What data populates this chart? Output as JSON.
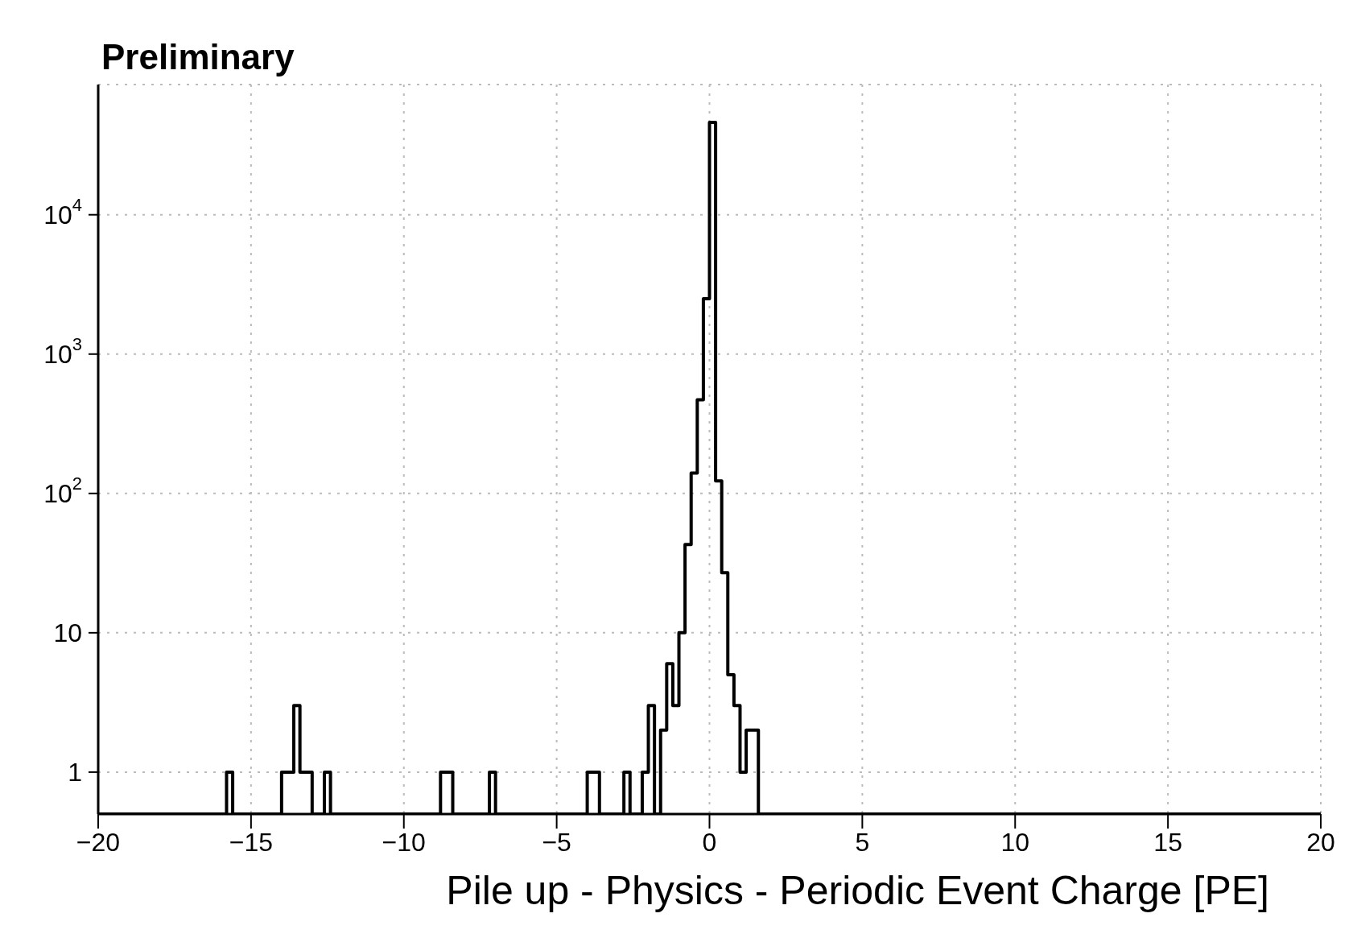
{
  "chart_data": {
    "type": "histogram",
    "title": "Preliminary",
    "xlabel": "Pile up - Physics - Periodic Event Charge [PE]",
    "color": "#000000",
    "log": "y",
    "grid": true,
    "bins": [
      -20,
      -19.8,
      -19.6,
      -19.4,
      -19.2,
      -19,
      -18.8,
      -18.6,
      -18.4,
      -18.2,
      -18,
      -17.8,
      -17.6,
      -17.4,
      -17.2,
      -17,
      -16.8,
      -16.6,
      -16.4,
      -16.2,
      -16,
      -15.8,
      -15.6,
      -15.4,
      -15.2,
      -15,
      -14.8,
      -14.6,
      -14.4,
      -14.2,
      -14,
      -13.8,
      -13.6,
      -13.4,
      -13.2,
      -13,
      -12.8,
      -12.6,
      -12.4,
      -12.2,
      -12,
      -11.8,
      -11.6,
      -11.4,
      -11.2,
      -11,
      -10.8,
      -10.6,
      -10.4,
      -10.2,
      -10,
      -9.8,
      -9.6,
      -9.4,
      -9.2,
      -9,
      -8.8,
      -8.6,
      -8.4,
      -8.2,
      -8,
      -7.8,
      -7.6,
      -7.4,
      -7.2,
      -7,
      -6.8,
      -6.6,
      -6.4,
      -6.2,
      -6,
      -5.8,
      -5.6,
      -5.4,
      -5.2,
      -5,
      -4.8,
      -4.6,
      -4.4,
      -4.2,
      -4,
      -3.8,
      -3.6,
      -3.4,
      -3.2,
      -3,
      -2.8,
      -2.6,
      -2.4,
      -2.2,
      -2,
      -1.8,
      -1.6,
      -1.4,
      -1.2,
      -1,
      -0.8,
      -0.6,
      -0.4,
      -0.2,
      0,
      0.2,
      0.4,
      0.6,
      0.8,
      1,
      1.2,
      1.4,
      1.6,
      1.8,
      2,
      2.2,
      2.4,
      2.6,
      2.8,
      3,
      3.2,
      3.4,
      3.6,
      3.8,
      4,
      4.2,
      4.4,
      4.6,
      4.8,
      5,
      5.2,
      5.4,
      5.6,
      5.8,
      6,
      6.2,
      6.4,
      6.6,
      6.8,
      7,
      7.2,
      7.4,
      7.6,
      7.8,
      8,
      8.2,
      8.4,
      8.6,
      8.8,
      9,
      9.2,
      9.4,
      9.6,
      9.8,
      10,
      10.2,
      10.4,
      10.6,
      10.8,
      11,
      11.2,
      11.4,
      11.6,
      11.8,
      12,
      12.2,
      12.4,
      12.6,
      12.8,
      13,
      13.2,
      13.4,
      13.6,
      13.8,
      14,
      14.2,
      14.4,
      14.6,
      14.8,
      15,
      15.2,
      15.4,
      15.6,
      15.8,
      16,
      16.2,
      16.4,
      16.6,
      16.8,
      17,
      17.2,
      17.4,
      17.6,
      17.8,
      18,
      18.2,
      18.4,
      18.6,
      18.8,
      19,
      19.2,
      19.4,
      19.6,
      19.8,
      20
    ],
    "values": [
      null,
      null,
      null,
      null,
      null,
      null,
      null,
      null,
      null,
      null,
      null,
      null,
      null,
      null,
      null,
      null,
      null,
      null,
      null,
      null,
      null,
      1,
      null,
      null,
      null,
      null,
      null,
      null,
      null,
      null,
      1,
      1,
      3,
      1,
      1,
      null,
      null,
      1,
      null,
      null,
      null,
      null,
      null,
      null,
      null,
      null,
      null,
      null,
      null,
      null,
      null,
      null,
      null,
      null,
      null,
      null,
      1,
      1,
      null,
      null,
      null,
      null,
      null,
      null,
      1,
      null,
      null,
      null,
      null,
      null,
      null,
      null,
      null,
      null,
      null,
      null,
      null,
      null,
      null,
      null,
      1,
      1,
      null,
      null,
      null,
      null,
      1,
      null,
      null,
      1,
      3,
      null,
      2,
      6,
      3,
      10,
      43,
      140,
      470,
      2500,
      46000,
      123,
      27,
      5,
      3,
      1,
      2,
      2,
      null,
      null,
      null,
      null,
      null,
      null,
      null,
      null,
      null,
      null,
      null,
      null,
      null,
      null,
      null,
      null,
      null,
      null,
      null,
      null,
      null,
      null,
      null,
      null,
      null,
      null,
      null,
      null,
      null,
      null,
      null,
      null,
      null,
      null,
      null,
      null,
      null,
      null,
      null,
      null,
      null,
      null,
      null,
      null,
      null,
      null,
      null,
      null,
      null,
      null,
      null,
      null,
      null,
      null,
      null,
      null,
      null,
      null,
      null,
      null,
      null,
      null,
      null,
      null,
      null,
      null,
      null,
      null,
      null,
      null,
      null,
      null,
      null,
      null,
      null,
      null,
      null,
      null,
      null,
      null,
      null,
      null,
      null,
      null,
      null,
      null,
      null,
      null,
      null,
      null,
      null,
      null
    ],
    "xlim": [
      -20,
      20
    ],
    "xticks": [
      -20,
      -15,
      -10,
      -5,
      0,
      5,
      10,
      15,
      20
    ],
    "ylim": [
      0.5,
      86000
    ],
    "yticks": [
      1,
      10,
      {
        "value": 100,
        "label": "10$^{2}$"
      },
      {
        "value": 1000,
        "label": "10$^{3}$"
      },
      {
        "value": 10000,
        "label": "10$^{4}$"
      }
    ]
  }
}
